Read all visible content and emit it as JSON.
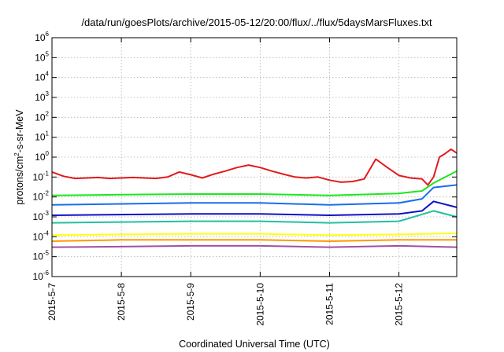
{
  "chart_data": {
    "type": "line",
    "title": "/data/run/goesPlots/archive/2015-05-12/20:00/flux/../flux/5daysMarsFluxes.txt",
    "xlabel": "Coordinated Universal Time (UTC)",
    "ylabel": "protons/cm2-s-sr-MeV",
    "ylabel_parts": {
      "pre": "protons/cm",
      "sup": "2",
      "post": "-s-sr-MeV"
    },
    "y_scale": "log",
    "ylim": [
      1e-06,
      1000000.0
    ],
    "y_ticks": [
      {
        "base": "10",
        "exp": "-6",
        "value": 1e-06
      },
      {
        "base": "10",
        "exp": "-5",
        "value": 1e-05
      },
      {
        "base": "10",
        "exp": "-4",
        "value": 0.0001
      },
      {
        "base": "10",
        "exp": "-3",
        "value": 0.001
      },
      {
        "base": "10",
        "exp": "-2",
        "value": 0.01
      },
      {
        "base": "10",
        "exp": "-1",
        "value": 0.1
      },
      {
        "base": "10",
        "exp": "0",
        "value": 1
      },
      {
        "base": "10",
        "exp": "1",
        "value": 10
      },
      {
        "base": "10",
        "exp": "2",
        "value": 100
      },
      {
        "base": "10",
        "exp": "3",
        "value": 1000
      },
      {
        "base": "10",
        "exp": "4",
        "value": 10000
      },
      {
        "base": "10",
        "exp": "5",
        "value": 100000
      },
      {
        "base": "10",
        "exp": "6",
        "value": 1000000
      }
    ],
    "xlim": [
      "2015-05-07T00:00",
      "2015-05-12T20:00"
    ],
    "x_ticks": [
      "2015-5-7",
      "2015-5-8",
      "2015-5-9",
      "2015-5-10",
      "2015-5-11",
      "2015-5-12"
    ],
    "x_tick_dates": [
      "2015-05-07T00:00",
      "2015-05-08T00:00",
      "2015-05-09T00:00",
      "2015-05-10T00:00",
      "2015-05-11T00:00",
      "2015-05-12T00:00"
    ],
    "grid": true,
    "legend": "none",
    "series": [
      {
        "color": "#e41a1c",
        "points": [
          [
            "2015-05-07T00:00",
            0.18
          ],
          [
            "2015-05-07T04:00",
            0.11
          ],
          [
            "2015-05-07T08:00",
            0.085
          ],
          [
            "2015-05-07T12:00",
            0.09
          ],
          [
            "2015-05-07T16:00",
            0.095
          ],
          [
            "2015-05-07T20:00",
            0.085
          ],
          [
            "2015-05-08T00:00",
            0.09
          ],
          [
            "2015-05-08T04:00",
            0.095
          ],
          [
            "2015-05-08T08:00",
            0.09
          ],
          [
            "2015-05-08T12:00",
            0.085
          ],
          [
            "2015-05-08T16:00",
            0.1
          ],
          [
            "2015-05-08T20:00",
            0.18
          ],
          [
            "2015-05-09T00:00",
            0.13
          ],
          [
            "2015-05-09T04:00",
            0.09
          ],
          [
            "2015-05-09T08:00",
            0.14
          ],
          [
            "2015-05-09T12:00",
            0.2
          ],
          [
            "2015-05-09T16:00",
            0.3
          ],
          [
            "2015-05-09T20:00",
            0.4
          ],
          [
            "2015-05-10T00:00",
            0.3
          ],
          [
            "2015-05-10T04:00",
            0.2
          ],
          [
            "2015-05-10T08:00",
            0.14
          ],
          [
            "2015-05-10T12:00",
            0.1
          ],
          [
            "2015-05-10T16:00",
            0.09
          ],
          [
            "2015-05-10T20:00",
            0.1
          ],
          [
            "2015-05-11T00:00",
            0.07
          ],
          [
            "2015-05-11T04:00",
            0.055
          ],
          [
            "2015-05-11T08:00",
            0.06
          ],
          [
            "2015-05-11T12:00",
            0.08
          ],
          [
            "2015-05-11T16:00",
            0.8
          ],
          [
            "2015-05-11T20:00",
            0.3
          ],
          [
            "2015-05-12T00:00",
            0.12
          ],
          [
            "2015-05-12T04:00",
            0.09
          ],
          [
            "2015-05-12T08:00",
            0.08
          ],
          [
            "2015-05-12T10:00",
            0.04
          ],
          [
            "2015-05-12T12:00",
            0.1
          ],
          [
            "2015-05-12T14:00",
            1.0
          ],
          [
            "2015-05-12T16:00",
            1.5
          ],
          [
            "2015-05-12T18:00",
            2.5
          ],
          [
            "2015-05-12T20:00",
            1.6
          ]
        ]
      },
      {
        "color": "#1ee61e",
        "points": [
          [
            "2015-05-07T00:00",
            0.012
          ],
          [
            "2015-05-08T00:00",
            0.013
          ],
          [
            "2015-05-09T00:00",
            0.014
          ],
          [
            "2015-05-10T00:00",
            0.014
          ],
          [
            "2015-05-11T00:00",
            0.012
          ],
          [
            "2015-05-12T00:00",
            0.015
          ],
          [
            "2015-05-12T08:00",
            0.02
          ],
          [
            "2015-05-12T12:00",
            0.05
          ],
          [
            "2015-05-12T20:00",
            0.2
          ]
        ]
      },
      {
        "color": "#1a6cf0",
        "points": [
          [
            "2015-05-07T00:00",
            0.004
          ],
          [
            "2015-05-08T00:00",
            0.0045
          ],
          [
            "2015-05-09T00:00",
            0.005
          ],
          [
            "2015-05-10T00:00",
            0.005
          ],
          [
            "2015-05-11T00:00",
            0.004
          ],
          [
            "2015-05-12T00:00",
            0.005
          ],
          [
            "2015-05-12T08:00",
            0.008
          ],
          [
            "2015-05-12T12:00",
            0.03
          ],
          [
            "2015-05-12T20:00",
            0.04
          ]
        ]
      },
      {
        "color": "#1010c8",
        "points": [
          [
            "2015-05-07T00:00",
            0.0012
          ],
          [
            "2015-05-08T00:00",
            0.0013
          ],
          [
            "2015-05-09T00:00",
            0.0014
          ],
          [
            "2015-05-10T00:00",
            0.0014
          ],
          [
            "2015-05-11T00:00",
            0.0012
          ],
          [
            "2015-05-12T00:00",
            0.0014
          ],
          [
            "2015-05-12T08:00",
            0.002
          ],
          [
            "2015-05-12T12:00",
            0.006
          ],
          [
            "2015-05-12T20:00",
            0.003
          ]
        ]
      },
      {
        "color": "#20c0a0",
        "points": [
          [
            "2015-05-07T00:00",
            0.0005
          ],
          [
            "2015-05-08T00:00",
            0.00055
          ],
          [
            "2015-05-09T00:00",
            0.0006
          ],
          [
            "2015-05-10T00:00",
            0.0006
          ],
          [
            "2015-05-11T00:00",
            0.0005
          ],
          [
            "2015-05-12T00:00",
            0.0006
          ],
          [
            "2015-05-12T12:00",
            0.002
          ],
          [
            "2015-05-12T20:00",
            0.001
          ]
        ]
      },
      {
        "color": "#ffff10",
        "points": [
          [
            "2015-05-07T00:00",
            0.00012
          ],
          [
            "2015-05-08T00:00",
            0.00013
          ],
          [
            "2015-05-09T00:00",
            0.00014
          ],
          [
            "2015-05-10T00:00",
            0.00014
          ],
          [
            "2015-05-11T00:00",
            0.00012
          ],
          [
            "2015-05-12T00:00",
            0.00013
          ],
          [
            "2015-05-12T20:00",
            0.00015
          ]
        ]
      },
      {
        "color": "#ff9900",
        "points": [
          [
            "2015-05-07T00:00",
            6e-05
          ],
          [
            "2015-05-08T00:00",
            7e-05
          ],
          [
            "2015-05-09T00:00",
            7e-05
          ],
          [
            "2015-05-10T00:00",
            7e-05
          ],
          [
            "2015-05-11T00:00",
            6e-05
          ],
          [
            "2015-05-12T00:00",
            7e-05
          ],
          [
            "2015-05-12T20:00",
            7e-05
          ]
        ]
      },
      {
        "color": "#a050a0",
        "points": [
          [
            "2015-05-07T00:00",
            3e-05
          ],
          [
            "2015-05-08T00:00",
            3.2e-05
          ],
          [
            "2015-05-09T00:00",
            3.5e-05
          ],
          [
            "2015-05-10T00:00",
            3.5e-05
          ],
          [
            "2015-05-11T00:00",
            3e-05
          ],
          [
            "2015-05-12T00:00",
            3.5e-05
          ],
          [
            "2015-05-12T20:00",
            3e-05
          ]
        ]
      }
    ]
  }
}
